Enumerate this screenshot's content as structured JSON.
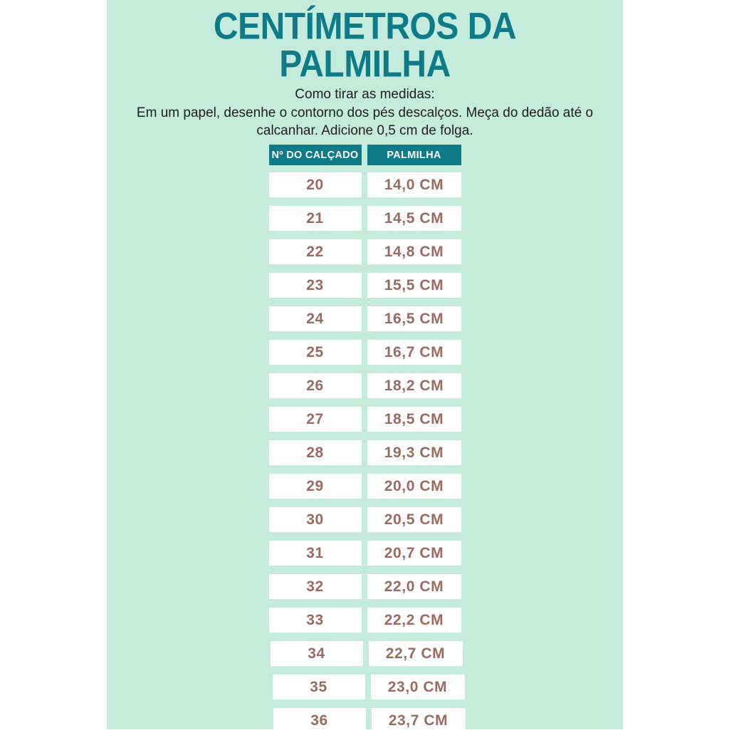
{
  "header": {
    "title_line1": "CENTÍMETROS DA",
    "title_line2": "PALMILHA",
    "howto_title": "Como tirar as medidas:",
    "howto_body": "Em um papel, desenhe o contorno dos pés descalços. Meça do dedão até o calcanhar. Adicione 0,5 cm de folga."
  },
  "table": {
    "col1_header": "Nº DO CALÇADO",
    "col2_header": "PALMILHA",
    "rows": [
      {
        "size": "20",
        "insole": "14,0 CM"
      },
      {
        "size": "21",
        "insole": "14,5 CM"
      },
      {
        "size": "22",
        "insole": "14,8 CM"
      },
      {
        "size": "23",
        "insole": "15,5 CM"
      },
      {
        "size": "24",
        "insole": "16,5 CM"
      },
      {
        "size": "25",
        "insole": "16,7 CM"
      },
      {
        "size": "26",
        "insole": "18,2 CM"
      },
      {
        "size": "27",
        "insole": "18,5 CM"
      },
      {
        "size": "28",
        "insole": "19,3 CM"
      },
      {
        "size": "29",
        "insole": "20,0 CM"
      },
      {
        "size": "30",
        "insole": "20,5 CM"
      },
      {
        "size": "31",
        "insole": "20,7 CM"
      },
      {
        "size": "32",
        "insole": "22,0 CM"
      },
      {
        "size": "33",
        "insole": "22,2 CM"
      },
      {
        "size": "34",
        "insole": "22,7 CM"
      },
      {
        "size": "35",
        "insole": "23,0 CM"
      },
      {
        "size": "36",
        "insole": "23,7 CM"
      }
    ]
  },
  "colors": {
    "panel_mint": "#c4ebdc",
    "accent_teal": "#0e7b88",
    "value_brown": "#9c6a61",
    "body_text": "#1e1e1e",
    "cell_white": "#ffffff",
    "page_margin_white": "#ffffff"
  },
  "chart_data": {
    "type": "table",
    "title": "CENTÍMETROS DA PALMILHA",
    "columns": [
      "Nº DO CALÇADO",
      "PALMILHA"
    ],
    "rows": [
      [
        "20",
        "14,0 CM"
      ],
      [
        "21",
        "14,5 CM"
      ],
      [
        "22",
        "14,8 CM"
      ],
      [
        "23",
        "15,5 CM"
      ],
      [
        "24",
        "16,5 CM"
      ],
      [
        "25",
        "16,7 CM"
      ],
      [
        "26",
        "18,2 CM"
      ],
      [
        "27",
        "18,5 CM"
      ],
      [
        "28",
        "19,3 CM"
      ],
      [
        "29",
        "20,0 CM"
      ],
      [
        "30",
        "20,5 CM"
      ],
      [
        "31",
        "20,7 CM"
      ],
      [
        "32",
        "22,0 CM"
      ],
      [
        "33",
        "22,2 CM"
      ],
      [
        "34",
        "22,7 CM"
      ],
      [
        "35",
        "23,0 CM"
      ],
      [
        "36",
        "23,7 CM"
      ]
    ],
    "insole_cm_values": [
      14.0,
      14.5,
      14.8,
      15.5,
      16.5,
      16.7,
      18.2,
      18.5,
      19.3,
      20.0,
      20.5,
      20.7,
      22.0,
      22.2,
      22.7,
      23.0,
      23.7
    ],
    "size_values": [
      20,
      21,
      22,
      23,
      24,
      25,
      26,
      27,
      28,
      29,
      30,
      31,
      32,
      33,
      34,
      35,
      36
    ]
  }
}
